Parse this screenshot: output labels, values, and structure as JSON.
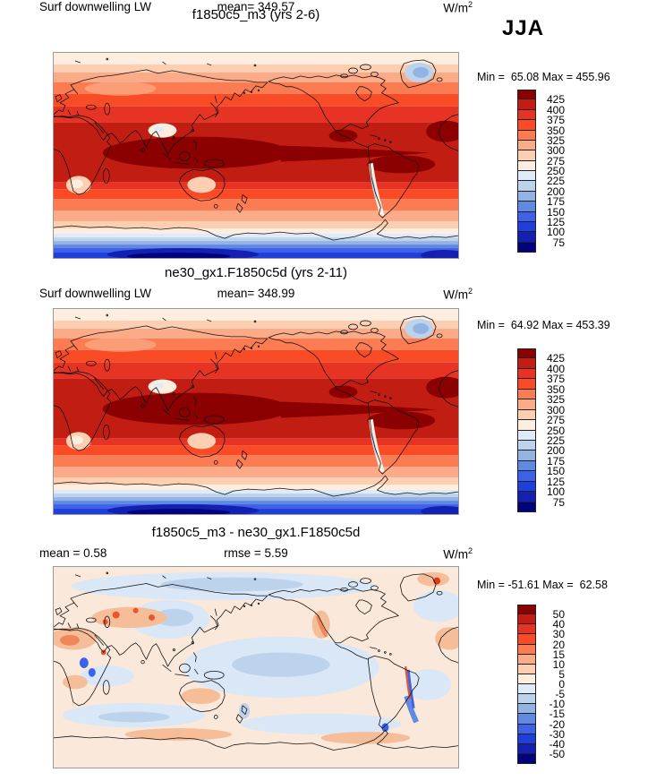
{
  "season_label": "JJA",
  "unit": {
    "base": "W/m",
    "exp": "2"
  },
  "palette_red_to_blue": [
    "#8b0000",
    "#c21d12",
    "#e63323",
    "#fa4b27",
    "#fb7c52",
    "#fbab88",
    "#fcceb2",
    "#fdeee0",
    "#dfebf8",
    "#bdd3ec",
    "#93b3e4",
    "#6089e2",
    "#3d62e9",
    "#1f3eda",
    "#1320b2",
    "#02027e"
  ],
  "panels": [
    {
      "title": "f1850c5_m3 (yrs 2-6)",
      "field_label": "Surf downwelling LW",
      "mean_label": "mean= 349.57",
      "minmax_label": "Min =  65.08 Max = 455.96",
      "colorbar": {
        "labels": [
          "425",
          "400",
          "375",
          "350",
          "325",
          "300",
          "275",
          "250",
          "225",
          "200",
          "175",
          "150",
          "125",
          "100",
          "75"
        ],
        "colors": [
          "#8b0000",
          "#c21d12",
          "#e63323",
          "#fa4b27",
          "#fb7c52",
          "#fbab88",
          "#fcceb2",
          "#fdeee0",
          "#dfebf8",
          "#bdd3ec",
          "#93b3e4",
          "#6089e2",
          "#3d62e9",
          "#1f3eda",
          "#1320b2",
          "#02027e"
        ]
      }
    },
    {
      "title": "ne30_gx1.F1850c5d (yrs 2-11)",
      "field_label": "Surf downwelling LW",
      "mean_label": "mean= 348.99",
      "minmax_label": "Min =  64.92 Max = 453.39",
      "colorbar": {
        "labels": [
          "425",
          "400",
          "375",
          "350",
          "325",
          "300",
          "275",
          "250",
          "225",
          "200",
          "175",
          "150",
          "125",
          "100",
          "75"
        ],
        "colors": [
          "#8b0000",
          "#c21d12",
          "#e63323",
          "#fa4b27",
          "#fb7c52",
          "#fbab88",
          "#fcceb2",
          "#fdeee0",
          "#dfebf8",
          "#bdd3ec",
          "#93b3e4",
          "#6089e2",
          "#3d62e9",
          "#1f3eda",
          "#1320b2",
          "#02027e"
        ]
      }
    },
    {
      "title": "f1850c5_m3 - ne30_gx1.F1850c5d",
      "mean_label": "mean =  0.58",
      "rmse_label": "rmse =  5.59",
      "minmax_label": "Min = -51.61 Max =  62.58",
      "colorbar": {
        "labels": [
          "50",
          "40",
          "30",
          "20",
          "15",
          "10",
          "5",
          "0",
          "-5",
          "-10",
          "-15",
          "-20",
          "-30",
          "-40",
          "-50"
        ],
        "colors": [
          "#8b0000",
          "#c21d12",
          "#e63323",
          "#fa4b27",
          "#fb7c52",
          "#fbab88",
          "#fcceb2",
          "#fdeee0",
          "#dfebf8",
          "#bdd3ec",
          "#93b3e4",
          "#6089e2",
          "#3d62e9",
          "#1f3eda",
          "#1320b2",
          "#02027e"
        ]
      }
    }
  ],
  "chart_data": [
    {
      "type": "heatmap",
      "projection": "cylindrical equidistant world map, lon 0-360E, lat 90N-90S",
      "title": "f1850c5_m3 (yrs 2-6)",
      "variable": "Surf downwelling LW",
      "season": "JJA",
      "units": "W/m2",
      "mean": 349.57,
      "min": 65.08,
      "max": 455.96,
      "contour_levels": [
        75,
        100,
        125,
        150,
        175,
        200,
        225,
        250,
        275,
        300,
        325,
        350,
        375,
        400,
        425
      ],
      "legend_position": "right vertical colorbar, red high to blue low",
      "pattern": "high values (350-455, reds) across tropics and NH summer continents; maximum band (>425) over Indian Ocean and west Pacific warm pool; values fall poleward, white/pale near 60S and over Greenland and Tibet; minimum (<75, dark navy) over Antarctic interior"
    },
    {
      "type": "heatmap",
      "projection": "cylindrical equidistant world map, lon 0-360E, lat 90N-90S",
      "title": "ne30_gx1.F1850c5d (yrs 2-11)",
      "variable": "Surf downwelling LW",
      "season": "JJA",
      "units": "W/m2",
      "mean": 348.99,
      "min": 64.92,
      "max": 453.39,
      "contour_levels": [
        75,
        100,
        125,
        150,
        175,
        200,
        225,
        250,
        275,
        300,
        325,
        350,
        375,
        400,
        425
      ],
      "legend_position": "right vertical colorbar, red high to blue low",
      "pattern": "nearly identical to panel 1 with a more pronounced dark-red equatorial tongue extending east across the Pacific"
    },
    {
      "type": "heatmap",
      "projection": "cylindrical equidistant world map, lon 0-360E, lat 90N-90S",
      "title": "f1850c5_m3 - ne30_gx1.F1850c5d",
      "variable": "Surf downwelling LW difference",
      "season": "JJA",
      "units": "W/m2",
      "mean": 0.58,
      "rmse": 5.59,
      "min": -51.61,
      "max": 62.58,
      "contour_levels": [
        -50,
        -40,
        -30,
        -20,
        -15,
        -10,
        -5,
        0,
        5,
        10,
        15,
        20,
        30,
        40,
        50
      ],
      "legend_position": "right vertical colorbar, red positive to blue negative",
      "pattern": "mostly near zero (pale peach/pale blue mottling); negative (blue) over Siberia-Arctic, east Asia, central Pacific and along the Andes/southern Chile and New Zealand; positive (orange/red) over Sahara, central Asia, western North America coast, east Greenland and parts of southern Africa"
    }
  ]
}
